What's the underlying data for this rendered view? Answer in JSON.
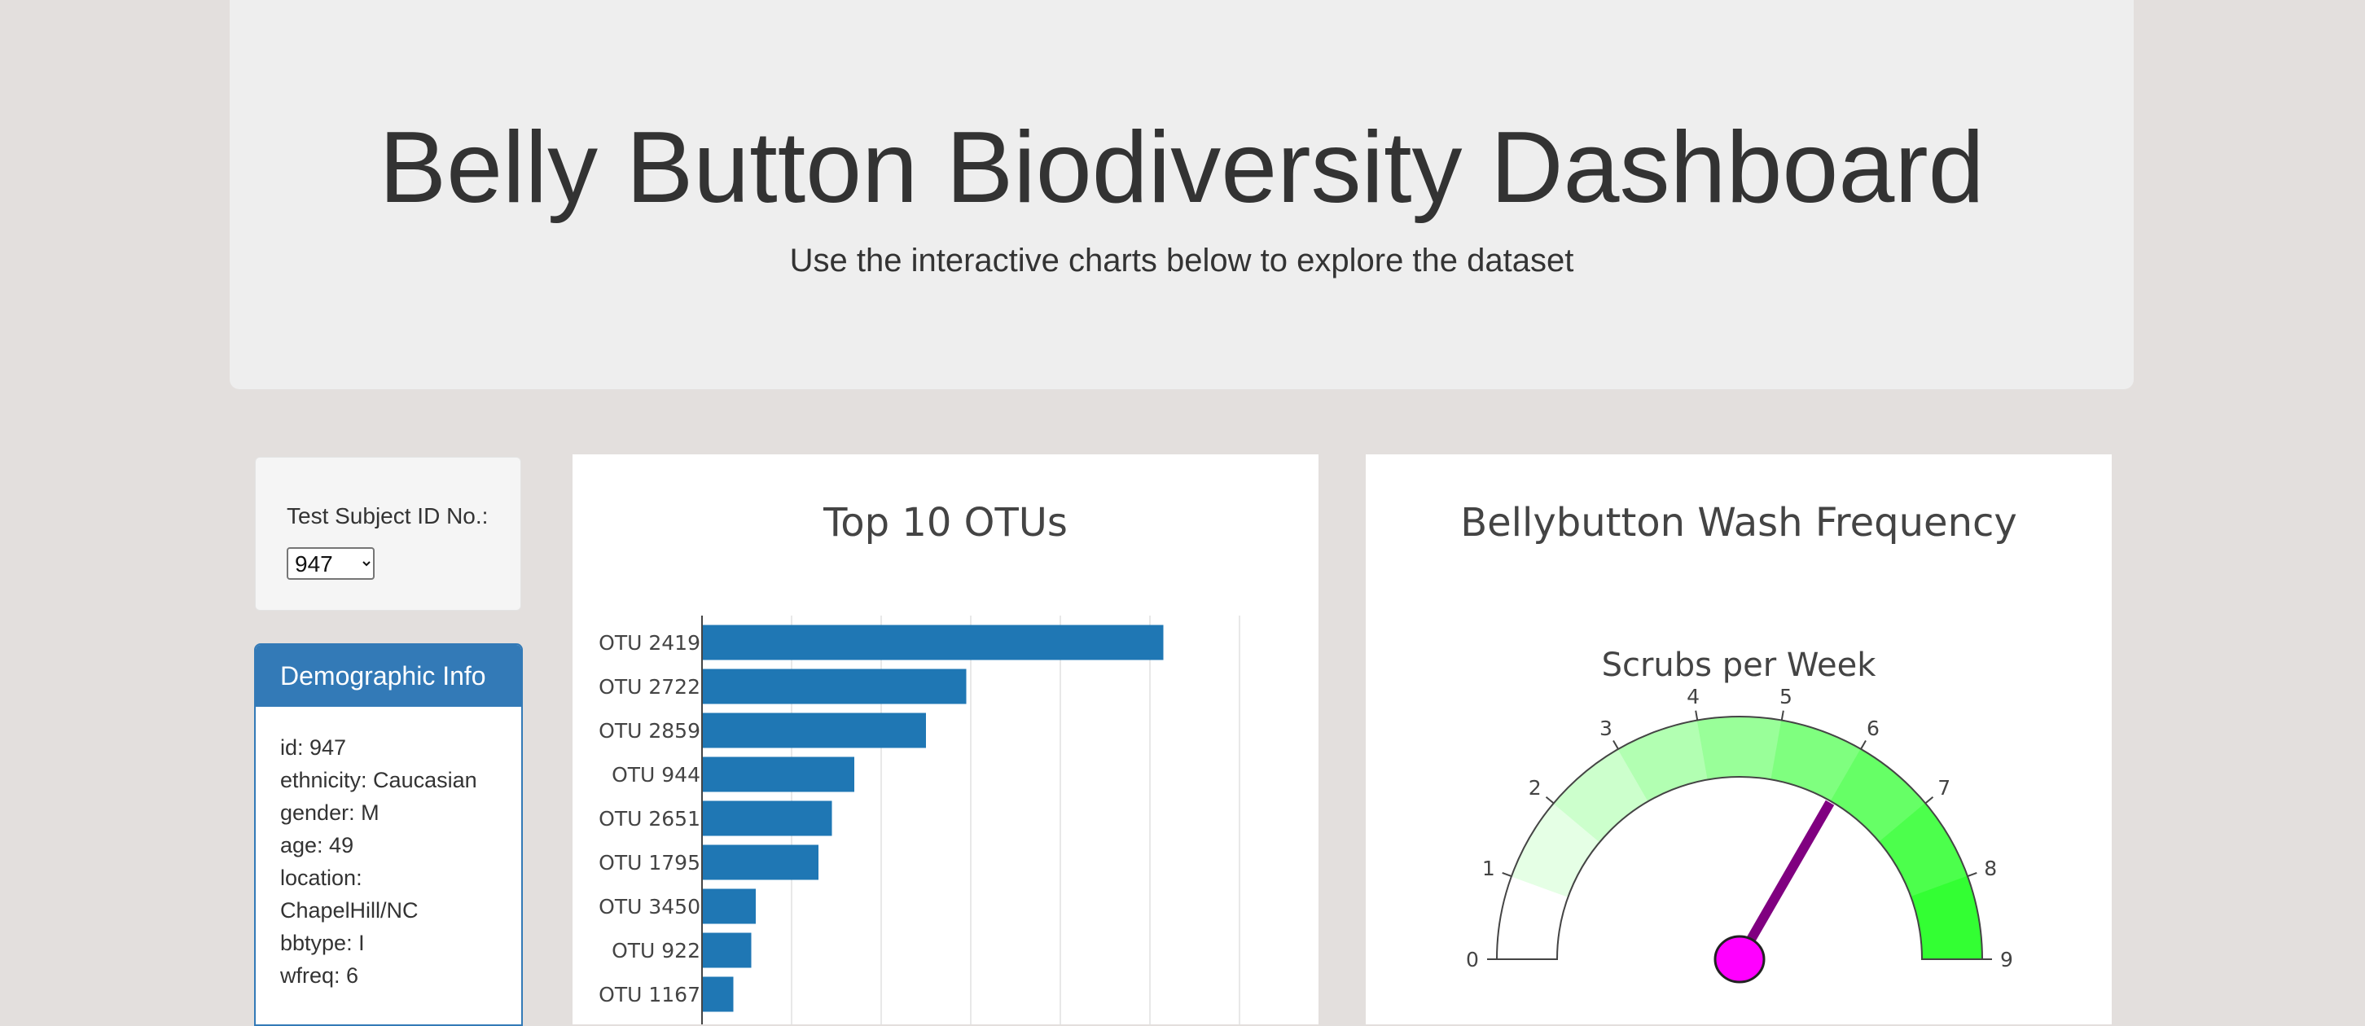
{
  "header": {
    "title": "Belly Button Biodiversity Dashboard",
    "subtitle": "Use the interactive charts below to explore the dataset"
  },
  "selector": {
    "label": "Test Subject ID No.:",
    "selected": "947"
  },
  "demographic": {
    "heading": "Demographic Info",
    "lines": [
      "id: 947",
      "ethnicity: Caucasian",
      "gender: M",
      "age: 49",
      "location:",
      "ChapelHill/NC",
      "bbtype: I",
      "wfreq: 6"
    ]
  },
  "chart_data": [
    {
      "type": "bar",
      "orientation": "horizontal",
      "title": "Top 10 OTUs",
      "categories": [
        "OTU 2419",
        "OTU 2722",
        "OTU 2859",
        "OTU 944",
        "OTU 2651",
        "OTU 1795",
        "OTU 3450",
        "OTU 922",
        "OTU 1167"
      ],
      "values": [
        103,
        59,
        50,
        34,
        29,
        26,
        12,
        11,
        7
      ],
      "xlim": [
        0,
        130
      ],
      "grid": true,
      "color": "#1f77b4"
    },
    {
      "type": "gauge",
      "title": "Bellybutton Wash Frequency",
      "subtitle": "Scrubs per Week",
      "value": 6,
      "range": [
        0,
        9
      ],
      "ticks": [
        "0",
        "1",
        "2",
        "3",
        "4",
        "5",
        "6",
        "7",
        "8",
        "9"
      ],
      "step_colors": [
        "#ffffff",
        "#e5ffe5",
        "#ccffcc",
        "#b2ffb2",
        "#99ff99",
        "#7fff7f",
        "#66ff66",
        "#4cff4c",
        "#33ff33"
      ],
      "needle_color": "#800080",
      "hub_color": "#ff00ff"
    }
  ]
}
